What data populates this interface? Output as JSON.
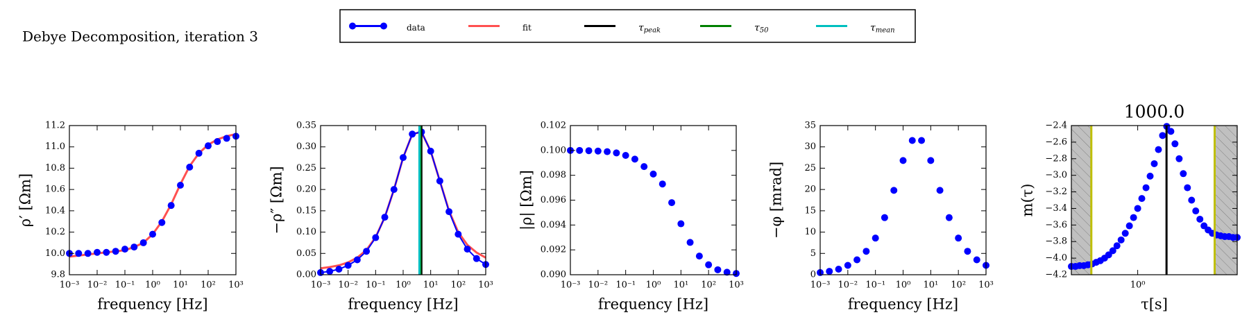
{
  "title": "Debye Decomposition, iteration 3",
  "chart_data": [
    {
      "type": "line",
      "xlabel": "frequency [Hz]",
      "ylabel": "ρ′ [Ωm]",
      "xlog": true,
      "xlim": [
        0.001,
        1000
      ],
      "ylim": [
        9.8,
        11.2
      ],
      "xticks": [
        {
          "value": 0.001,
          "label": "10⁻³"
        },
        {
          "value": 0.01,
          "label": "10⁻²"
        },
        {
          "value": 0.1,
          "label": "10⁻¹"
        },
        {
          "value": 1,
          "label": "10⁰"
        },
        {
          "value": 10,
          "label": "10¹"
        },
        {
          "value": 100,
          "label": "10²"
        },
        {
          "value": 1000,
          "label": "10³"
        }
      ],
      "yticks": [
        9.8,
        {
          "value": 10,
          "label": "10.0"
        },
        10.2,
        10.4,
        10.6,
        10.8,
        {
          "value": 11,
          "label": "11.0"
        },
        11.2
      ],
      "x": [
        0.001,
        0.00215,
        0.00464,
        0.01,
        0.0215,
        0.0464,
        0.1,
        0.215,
        0.464,
        1,
        2.15,
        4.64,
        10,
        21.5,
        46.4,
        100,
        215,
        464,
        1000
      ],
      "series": [
        {
          "name": "data",
          "color": "#0000ff",
          "marker": true,
          "line": false,
          "values": [
            10.0,
            10.0,
            10.0,
            10.01,
            10.01,
            10.02,
            10.04,
            10.06,
            10.1,
            10.18,
            10.29,
            10.45,
            10.64,
            10.81,
            10.94,
            11.01,
            11.05,
            11.08,
            11.1
          ]
        },
        {
          "name": "fit",
          "color": "#ff5050",
          "marker": false,
          "line": true,
          "values": [
            9.97,
            9.98,
            9.99,
            10.0,
            10.01,
            10.02,
            10.03,
            10.06,
            10.1,
            10.18,
            10.3,
            10.46,
            10.65,
            10.82,
            10.94,
            11.02,
            11.07,
            11.1,
            11.12
          ]
        }
      ]
    },
    {
      "type": "line",
      "xlabel": "frequency [Hz]",
      "ylabel": "−ρ″ [Ωm]",
      "xlog": true,
      "legend": "upper center",
      "xlim": [
        0.001,
        1000
      ],
      "ylim": [
        0,
        0.35
      ],
      "xticks": [
        {
          "value": 0.001,
          "label": "10⁻³"
        },
        {
          "value": 0.01,
          "label": "10⁻²"
        },
        {
          "value": 0.1,
          "label": "10⁻¹"
        },
        {
          "value": 1,
          "label": "10⁰"
        },
        {
          "value": 10,
          "label": "10¹"
        },
        {
          "value": 100,
          "label": "10²"
        },
        {
          "value": 1000,
          "label": "10³"
        }
      ],
      "yticks": [
        {
          "value": 0,
          "label": "0.00"
        },
        0.05,
        {
          "value": 0.1,
          "label": "0.10"
        },
        0.15,
        {
          "value": 0.2,
          "label": "0.20"
        },
        0.25,
        {
          "value": 0.3,
          "label": "0.30"
        },
        0.35
      ],
      "x": [
        0.001,
        0.00215,
        0.00464,
        0.01,
        0.0215,
        0.0464,
        0.1,
        0.215,
        0.464,
        1,
        2.15,
        4.64,
        10,
        21.5,
        46.4,
        100,
        215,
        464,
        1000
      ],
      "series": [
        {
          "name": "data",
          "color": "#0000ff",
          "marker": true,
          "line": true,
          "values": [
            0.005,
            0.008,
            0.013,
            0.022,
            0.035,
            0.055,
            0.087,
            0.135,
            0.2,
            0.275,
            0.33,
            0.335,
            0.29,
            0.22,
            0.148,
            0.095,
            0.06,
            0.038,
            0.024
          ]
        },
        {
          "name": "fit",
          "color": "#ff5050",
          "marker": false,
          "line": true,
          "values": [
            0.015,
            0.018,
            0.022,
            0.029,
            0.04,
            0.058,
            0.088,
            0.135,
            0.2,
            0.275,
            0.33,
            0.335,
            0.29,
            0.22,
            0.15,
            0.1,
            0.07,
            0.052,
            0.04
          ]
        }
      ],
      "vlines": [
        {
          "name": "τpeak",
          "x": 4.6,
          "color": "#000000"
        },
        {
          "name": "τ50",
          "x": 4.2,
          "color": "#008000"
        },
        {
          "name": "τmean",
          "x": 3.9,
          "color": "#00bfbf"
        }
      ]
    },
    {
      "type": "scatter",
      "xlabel": "frequency [Hz]",
      "ylabel": "|ρ| [Ωm]",
      "xlog": true,
      "xlim": [
        0.001,
        1000
      ],
      "ylim": [
        0.09,
        0.102
      ],
      "xticks": [
        {
          "value": 0.001,
          "label": "10⁻³"
        },
        {
          "value": 0.01,
          "label": "10⁻²"
        },
        {
          "value": 0.1,
          "label": "10⁻¹"
        },
        {
          "value": 1,
          "label": "10⁰"
        },
        {
          "value": 10,
          "label": "10¹"
        },
        {
          "value": 100,
          "label": "10²"
        },
        {
          "value": 1000,
          "label": "10³"
        }
      ],
      "yticks": [
        {
          "value": 0.09,
          "label": "0.090"
        },
        0.092,
        0.094,
        0.096,
        0.098,
        {
          "value": 0.1,
          "label": "0.100"
        },
        0.102
      ],
      "x": [
        0.001,
        0.00215,
        0.00464,
        0.01,
        0.0215,
        0.0464,
        0.1,
        0.215,
        0.464,
        1,
        2.15,
        4.64,
        10,
        21.5,
        46.4,
        100,
        215,
        464,
        1000
      ],
      "series": [
        {
          "name": "data",
          "color": "#0000ff",
          "marker": true,
          "line": false,
          "values": [
            0.1,
            0.1,
            0.09998,
            0.09995,
            0.0999,
            0.0998,
            0.0996,
            0.0993,
            0.0987,
            0.0981,
            0.0973,
            0.0958,
            0.0941,
            0.0926,
            0.0915,
            0.0908,
            0.0904,
            0.0902,
            0.0901
          ]
        }
      ]
    },
    {
      "type": "scatter",
      "xlabel": "frequency [Hz]",
      "ylabel": "−φ [mrad]",
      "xlog": true,
      "xlim": [
        0.001,
        1000
      ],
      "ylim": [
        0,
        35
      ],
      "xticks": [
        {
          "value": 0.001,
          "label": "10⁻³"
        },
        {
          "value": 0.01,
          "label": "10⁻²"
        },
        {
          "value": 0.1,
          "label": "10⁻¹"
        },
        {
          "value": 1,
          "label": "10⁰"
        },
        {
          "value": 10,
          "label": "10¹"
        },
        {
          "value": 100,
          "label": "10²"
        },
        {
          "value": 1000,
          "label": "10³"
        }
      ],
      "yticks": [
        0,
        5,
        10,
        15,
        20,
        25,
        30,
        35
      ],
      "x": [
        0.001,
        0.00215,
        0.00464,
        0.01,
        0.0215,
        0.0464,
        0.1,
        0.215,
        0.464,
        1,
        2.15,
        4.64,
        10,
        21.5,
        46.4,
        100,
        215,
        464,
        1000
      ],
      "series": [
        {
          "name": "data",
          "color": "#0000ff",
          "marker": true,
          "line": false,
          "values": [
            0.5,
            0.8,
            1.3,
            2.2,
            3.5,
            5.5,
            8.6,
            13.4,
            19.8,
            26.8,
            31.5,
            31.5,
            26.8,
            19.8,
            13.4,
            8.6,
            5.5,
            3.5,
            2.2
          ]
        }
      ]
    },
    {
      "type": "scatter",
      "title": "1000.0",
      "xlabel": "τ[s]",
      "ylabel": "m(τ)",
      "xlog": true,
      "xlim": [
        0.01,
        1000
      ],
      "ylim": [
        -4.2,
        -2.4
      ],
      "xticks": [
        {
          "value": 1,
          "label": "10⁰"
        }
      ],
      "yticks": [
        {
          "value": -2.4,
          "label": "−2.4"
        },
        {
          "value": -2.6,
          "label": "−2.6"
        },
        {
          "value": -2.8,
          "label": "−2.8"
        },
        {
          "value": -3.0,
          "label": "−3.0"
        },
        {
          "value": -3.2,
          "label": "−3.2"
        },
        {
          "value": -3.4,
          "label": "−3.4"
        },
        {
          "value": -3.6,
          "label": "−3.6"
        },
        {
          "value": -3.8,
          "label": "−3.8"
        },
        {
          "value": -4.0,
          "label": "−4.0"
        },
        {
          "value": -4.2,
          "label": "−4.2"
        }
      ],
      "x": [
        0.01,
        0.0133,
        0.0178,
        0.0237,
        0.0316,
        0.0422,
        0.0562,
        0.075,
        0.1,
        0.133,
        0.178,
        0.237,
        0.316,
        0.422,
        0.562,
        0.75,
        1,
        1.33,
        1.78,
        2.37,
        3.16,
        4.22,
        5.62,
        7.5,
        10,
        13.3,
        17.8,
        23.7,
        31.6,
        42.2,
        56.2,
        75,
        100,
        133,
        178,
        237,
        316,
        422,
        562,
        750,
        1000
      ],
      "series": [
        {
          "name": "m(τ)",
          "color": "#0000ff",
          "marker": true,
          "line": false,
          "values": [
            -4.1,
            -4.1,
            -4.09,
            -4.09,
            -4.08,
            -4.07,
            -4.05,
            -4.03,
            -4.0,
            -3.96,
            -3.91,
            -3.85,
            -3.78,
            -3.7,
            -3.61,
            -3.51,
            -3.4,
            -3.28,
            -3.15,
            -3.01,
            -2.86,
            -2.69,
            -2.52,
            -2.41,
            -2.47,
            -2.62,
            -2.8,
            -2.98,
            -3.15,
            -3.3,
            -3.43,
            -3.53,
            -3.61,
            -3.66,
            -3.7,
            -3.72,
            -3.73,
            -3.74,
            -3.74,
            -3.75,
            -3.75
          ]
        }
      ],
      "vlines": [
        {
          "x": 0.04,
          "color": "#bfbf00",
          "shade": "left"
        },
        {
          "x": 209,
          "color": "#bfbf00",
          "shade": "right"
        },
        {
          "x": 7.4,
          "color": "#000000"
        }
      ]
    }
  ]
}
